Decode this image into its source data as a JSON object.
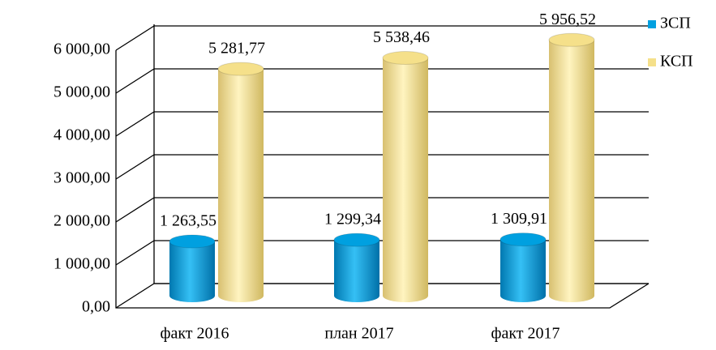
{
  "chart_data": {
    "type": "bar3d",
    "categories": [
      "факт 2016",
      "план 2017",
      "факт 2017"
    ],
    "series": [
      {
        "name": "ЗСП",
        "color": "#00a0e0",
        "values": [
          1263.55,
          1299.34,
          1309.91
        ],
        "value_labels": [
          "1 263,55",
          "1 299,34",
          "1 309,91"
        ]
      },
      {
        "name": "КСП",
        "color": "#f5e08a",
        "values": [
          5281.77,
          5538.46,
          5956.52
        ],
        "value_labels": [
          "5 281,77",
          "5 538,46",
          "5 956,52"
        ]
      }
    ],
    "ylim": [
      0,
      6000
    ],
    "yticks": [
      {
        "value": 0,
        "label": "0,00"
      },
      {
        "value": 1000,
        "label": "1 000,00"
      },
      {
        "value": 2000,
        "label": "2 000,00"
      },
      {
        "value": 3000,
        "label": "3 000,00"
      },
      {
        "value": 4000,
        "label": "4 000,00"
      },
      {
        "value": 5000,
        "label": "5 000,00"
      },
      {
        "value": 6000,
        "label": "6 000,00"
      }
    ],
    "grid": true,
    "legend": "right"
  }
}
